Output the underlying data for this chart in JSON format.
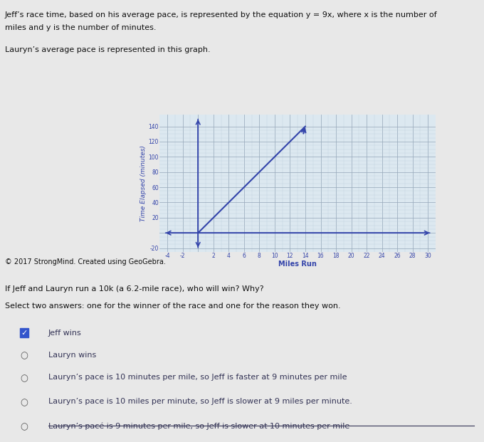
{
  "line1": "Jeff’s race time, based on his average pace, is represented by the equation y = 9x, where x is the number of",
  "line2": "miles and y is the number of minutes.",
  "subtitle": "Lauryn’s average pace is represented in this graph.",
  "copyright": "© 2017 StrongMind. Created using GeoGebra.",
  "question": "If Jeff and Lauryn run a 10k (a 6.2-mile race), who will win? Why?",
  "question_bold": [
    "10k",
    "6.2-mile race"
  ],
  "instruction": "Select two answers: one for the winner of the race and one for the reason they won.",
  "choices": [
    {
      "text": "Jeff wins",
      "checked": true,
      "type": "checkbox"
    },
    {
      "text": "Lauryn wins",
      "checked": false,
      "type": "radio"
    },
    {
      "text": "Lauryn’s pace is 10 minutes per mile, so Jeff is faster at 9 minutes per mile",
      "checked": false,
      "type": "radio"
    },
    {
      "text": "Lauryn’s pace is 10 miles per minute, so Jeff is slower at 9 miles per minute.",
      "checked": false,
      "type": "radio"
    },
    {
      "text": "Lauryn’s pacé is 9 minutes per mile, so Jeff is slower at 10 minutes per mile",
      "checked": false,
      "type": "radio",
      "strikethrough": true
    }
  ],
  "graph": {
    "xlim": [
      -5,
      31
    ],
    "ylim": [
      -25,
      155
    ],
    "xlabel": "Miles Run",
    "ylabel": "Time Elapsed (minutes)",
    "x_major_ticks": [
      -4,
      -2,
      2,
      4,
      6,
      8,
      10,
      12,
      14,
      16,
      18,
      20,
      22,
      24,
      26,
      28,
      30
    ],
    "y_major_ticks": [
      -20,
      20,
      40,
      60,
      80,
      100,
      120,
      140
    ],
    "line_x": [
      0,
      14
    ],
    "line_y": [
      0,
      140
    ],
    "line_color": "#3344aa",
    "grid_major_color": "#99aabb",
    "grid_minor_color": "#bbccdd",
    "axis_color": "#3344aa",
    "bg_color": "#dce8f0"
  },
  "page_bg": "#e8e8e8",
  "text_color": "#111111",
  "choice_color": "#333355"
}
